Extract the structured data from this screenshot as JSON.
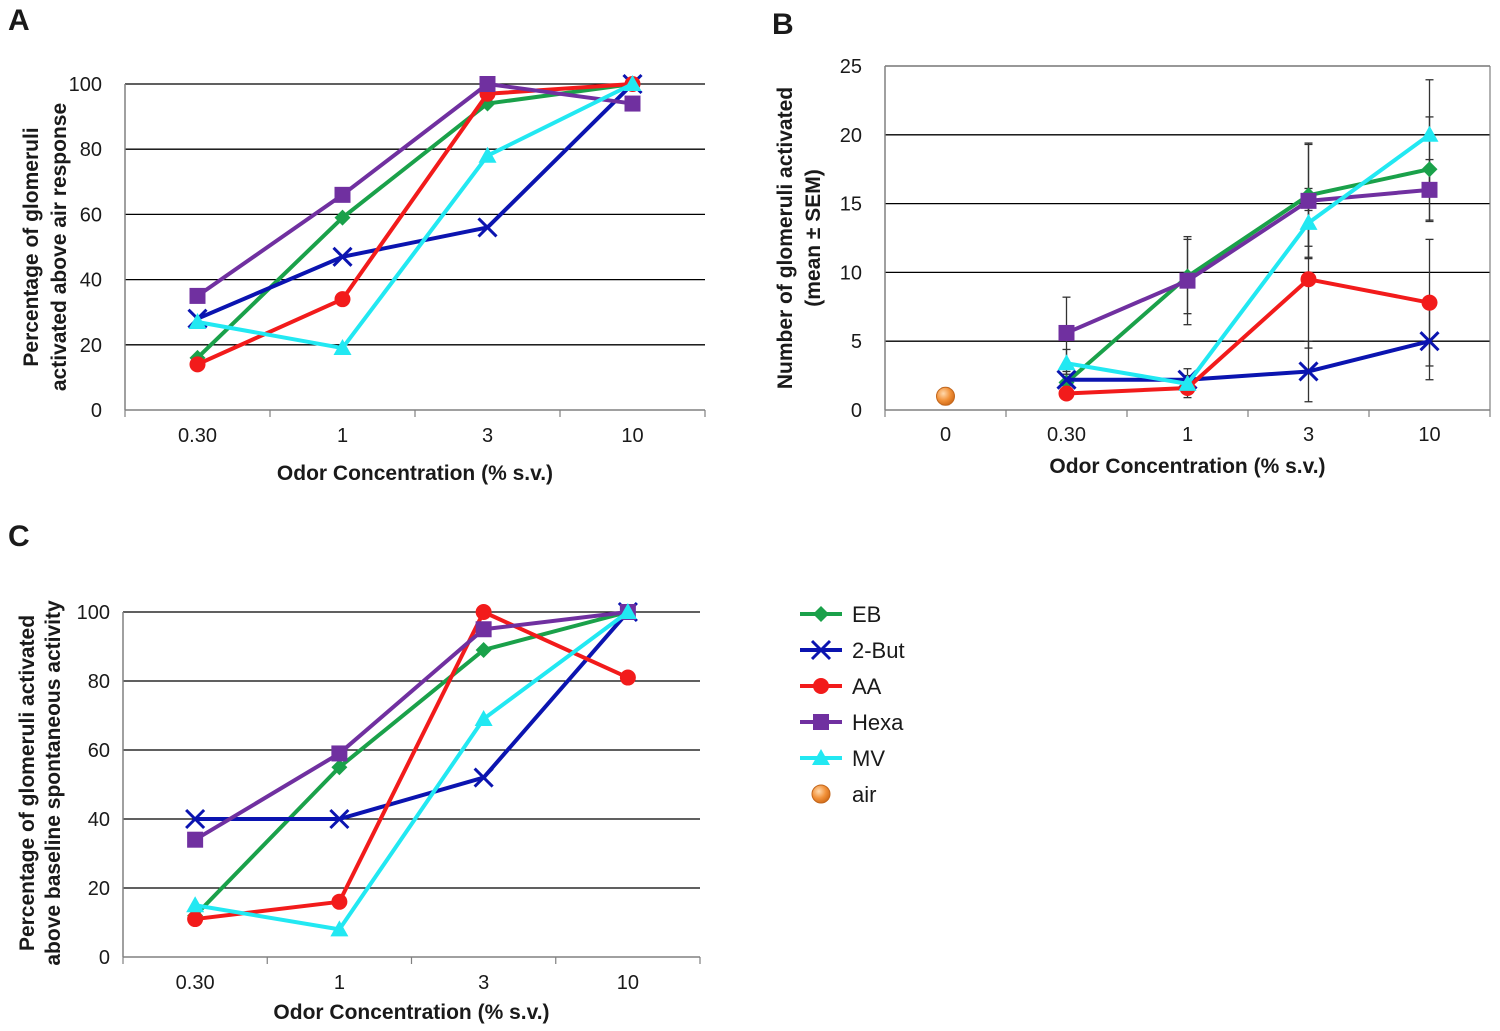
{
  "chart_data": [
    {
      "panel": "A",
      "type": "line",
      "categories": [
        "0.30",
        "1",
        "3",
        "10"
      ],
      "xlabel": "Odor Concentration (% s.v.)",
      "ylabel": [
        "Percentage of glomeruli",
        "activated above air response"
      ],
      "ylim": [
        0,
        100
      ],
      "yticks": [
        0,
        20,
        40,
        60,
        80,
        100
      ],
      "series": [
        {
          "name": "EB",
          "values": [
            16,
            59,
            94,
            100
          ]
        },
        {
          "name": "2-But",
          "values": [
            28,
            47,
            56,
            100
          ]
        },
        {
          "name": "AA",
          "values": [
            14,
            34,
            97,
            100
          ]
        },
        {
          "name": "Hexa",
          "values": [
            35,
            66,
            100,
            94
          ]
        },
        {
          "name": "MV",
          "values": [
            27,
            19,
            78,
            100
          ]
        }
      ]
    },
    {
      "panel": "B",
      "type": "line",
      "categories": [
        "0",
        "0.30",
        "1",
        "3",
        "10"
      ],
      "xlabel": "Odor Concentration (% s.v.)",
      "ylabel": [
        "Number of glomeruli activated",
        "(mean ± SEM)"
      ],
      "ylim": [
        0,
        25
      ],
      "yticks": [
        0,
        5,
        10,
        15,
        20,
        25
      ],
      "series": [
        {
          "name": "EB",
          "values": [
            null,
            2.0,
            9.7,
            15.6,
            17.5
          ],
          "errors": [
            null,
            0.8,
            2.7,
            3.7,
            3.8
          ]
        },
        {
          "name": "2-But",
          "values": [
            null,
            2.2,
            2.2,
            2.8,
            5.0
          ],
          "errors": [
            null,
            0.4,
            0.8,
            2.2,
            2.8
          ]
        },
        {
          "name": "AA",
          "values": [
            null,
            1.2,
            1.6,
            9.5,
            7.8
          ],
          "errors": [
            null,
            0.4,
            0.7,
            5.0,
            4.6
          ]
        },
        {
          "name": "Hexa",
          "values": [
            null,
            5.6,
            9.4,
            15.2,
            16.0
          ],
          "errors": [
            null,
            2.6,
            3.2,
            4.2,
            2.2
          ]
        },
        {
          "name": "MV",
          "values": [
            null,
            3.4,
            1.9,
            13.6,
            20.0
          ],
          "errors": [
            null,
            1.0,
            0.6,
            2.5,
            4.0
          ]
        },
        {
          "name": "air",
          "values": [
            1.0,
            null,
            null,
            null,
            null
          ],
          "errors": [
            0.6,
            null,
            null,
            null,
            null
          ],
          "marker_only": true
        }
      ]
    },
    {
      "panel": "C",
      "type": "line",
      "categories": [
        "0.30",
        "1",
        "3",
        "10"
      ],
      "xlabel": "Odor Concentration (% s.v.)",
      "ylabel": [
        "Percentage of glomeruli activated",
        "above baseline spontaneous activity"
      ],
      "ylim": [
        0,
        100
      ],
      "yticks": [
        0,
        20,
        40,
        60,
        80,
        100
      ],
      "series": [
        {
          "name": "EB",
          "values": [
            12,
            55,
            89,
            100
          ]
        },
        {
          "name": "2-But",
          "values": [
            40,
            40,
            52,
            100
          ]
        },
        {
          "name": "AA",
          "values": [
            11,
            16,
            100,
            81
          ]
        },
        {
          "name": "Hexa",
          "values": [
            34,
            59,
            95,
            100
          ]
        },
        {
          "name": "MV",
          "values": [
            15,
            8,
            69,
            100
          ]
        }
      ]
    }
  ],
  "legend": {
    "placement": "right of panel C",
    "entries": [
      {
        "name": "EB",
        "label": "EB",
        "color": "#1aa14a",
        "marker": "diamond"
      },
      {
        "name": "2-But",
        "label": "2-But",
        "color": "#0b14b0",
        "marker": "x"
      },
      {
        "name": "AA",
        "label": "AA",
        "color": "#f21b1b",
        "marker": "circle"
      },
      {
        "name": "Hexa",
        "label": "Hexa",
        "color": "#7030a0",
        "marker": "square"
      },
      {
        "name": "MV",
        "label": "MV",
        "color": "#22e8f2",
        "marker": "triangle"
      },
      {
        "name": "air",
        "label": "air",
        "color": "#f2923a",
        "marker": "sphere"
      }
    ]
  },
  "colors": {
    "EB": "#1aa14a",
    "2-But": "#0b14b0",
    "AA": "#f21b1b",
    "Hexa": "#7030a0",
    "MV": "#22e8f2",
    "air": "#f2923a",
    "grid": "#000000",
    "axis": "#808080",
    "errorbar": "#333333"
  }
}
